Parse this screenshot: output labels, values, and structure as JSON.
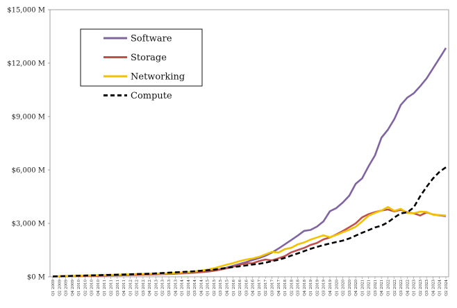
{
  "chart_data": {
    "type": "line",
    "title": "",
    "xlabel": "",
    "ylabel": "",
    "ylim": [
      0,
      15000
    ],
    "y_ticks": [
      0,
      3000,
      6000,
      9000,
      12000,
      15000
    ],
    "y_tick_labels": [
      "$0 M",
      "$3,000 M",
      "$6,000 M",
      "$9,000 M",
      "$12,000 M",
      "$15,000 M"
    ],
    "grid": false,
    "legend": "top-left",
    "categories": [
      "Q1 2009",
      "Q2 2009",
      "Q3 2009",
      "Q4 2009",
      "Q1 2010",
      "Q2 2010",
      "Q3 2010",
      "Q4 2010",
      "Q1 2011",
      "Q2 2011",
      "Q3 2011",
      "Q4 2011",
      "Q1 2012",
      "Q2 2012",
      "Q3 2012",
      "Q4 2012",
      "Q1 2013",
      "Q2 2013",
      "Q3 2013",
      "Q4 2013",
      "Q1 2014",
      "Q2 2014",
      "Q3 2014",
      "Q4 2014",
      "Q1 2015",
      "Q2 2015",
      "Q3 2015",
      "Q4 2015",
      "Q1 2016",
      "Q2 2016",
      "Q3 2016",
      "Q4 2016",
      "Q1 2017",
      "Q2 2017",
      "Q3 2017",
      "Q4 2017",
      "Q1 2018",
      "Q2 2018",
      "Q3 2018",
      "Q4 2018",
      "Q1 2019",
      "Q2 2019",
      "Q3 2019",
      "Q4 2019",
      "Q1 2020",
      "Q2 2020",
      "Q3 2020",
      "Q4 2020",
      "Q1 2021",
      "Q2 2021",
      "Q3 2021",
      "Q4 2021",
      "Q1 2022",
      "Q2 2022",
      "Q3 2022",
      "Q4 2022",
      "Q1 2023",
      "Q2 2023",
      "Q3 2023",
      "Q4 2023",
      "Q1 2024",
      "Q2 2024"
    ],
    "series": [
      {
        "name": "Software",
        "color": "#8064a2",
        "dash": "solid",
        "values": [
          20,
          30,
          40,
          50,
          50,
          60,
          70,
          80,
          90,
          100,
          110,
          120,
          130,
          140,
          150,
          160,
          170,
          180,
          190,
          200,
          220,
          240,
          260,
          290,
          320,
          360,
          420,
          520,
          620,
          720,
          830,
          940,
          1050,
          1180,
          1360,
          1580,
          1820,
          2060,
          2310,
          2580,
          2630,
          2820,
          3110,
          3680,
          3860,
          4170,
          4550,
          5220,
          5530,
          6210,
          6820,
          7810,
          8260,
          8860,
          9650,
          10060,
          10300,
          10700,
          11140,
          11700,
          12270,
          12850
        ]
      },
      {
        "name": "Storage",
        "color": "#c0504d",
        "dash": "solid",
        "values": [
          20,
          20,
          30,
          40,
          40,
          50,
          60,
          60,
          70,
          80,
          80,
          90,
          100,
          110,
          120,
          130,
          140,
          150,
          160,
          170,
          190,
          210,
          230,
          260,
          290,
          340,
          400,
          480,
          570,
          670,
          760,
          760,
          880,
          970,
          920,
          1040,
          1160,
          1370,
          1500,
          1620,
          1790,
          1900,
          2100,
          2210,
          2380,
          2570,
          2780,
          3000,
          3340,
          3520,
          3630,
          3720,
          3780,
          3670,
          3760,
          3620,
          3570,
          3440,
          3620,
          3500,
          3450,
          3400
        ]
      },
      {
        "name": "Networking",
        "color": "#f2c200",
        "dash": "solid",
        "values": [
          20,
          30,
          40,
          50,
          60,
          70,
          80,
          90,
          100,
          110,
          120,
          130,
          140,
          150,
          160,
          170,
          180,
          190,
          200,
          220,
          240,
          260,
          300,
          340,
          400,
          480,
          580,
          680,
          770,
          880,
          970,
          1030,
          1120,
          1260,
          1400,
          1360,
          1550,
          1630,
          1820,
          1930,
          2090,
          2210,
          2330,
          2220,
          2350,
          2500,
          2640,
          2810,
          3110,
          3430,
          3590,
          3720,
          3920,
          3700,
          3820,
          3580,
          3570,
          3660,
          3640,
          3490,
          3470,
          3440
        ]
      },
      {
        "name": "Compute",
        "color": "#000000",
        "dash": "dashed",
        "values": [
          20,
          30,
          40,
          50,
          60,
          70,
          80,
          90,
          100,
          110,
          120,
          130,
          140,
          150,
          160,
          170,
          190,
          210,
          230,
          250,
          270,
          290,
          310,
          340,
          370,
          400,
          450,
          500,
          550,
          590,
          640,
          690,
          730,
          790,
          880,
          950,
          1060,
          1190,
          1310,
          1440,
          1570,
          1680,
          1780,
          1870,
          1950,
          2030,
          2150,
          2310,
          2470,
          2620,
          2770,
          2870,
          3060,
          3330,
          3560,
          3620,
          3890,
          4520,
          5050,
          5520,
          5890,
          6150
        ]
      }
    ]
  }
}
